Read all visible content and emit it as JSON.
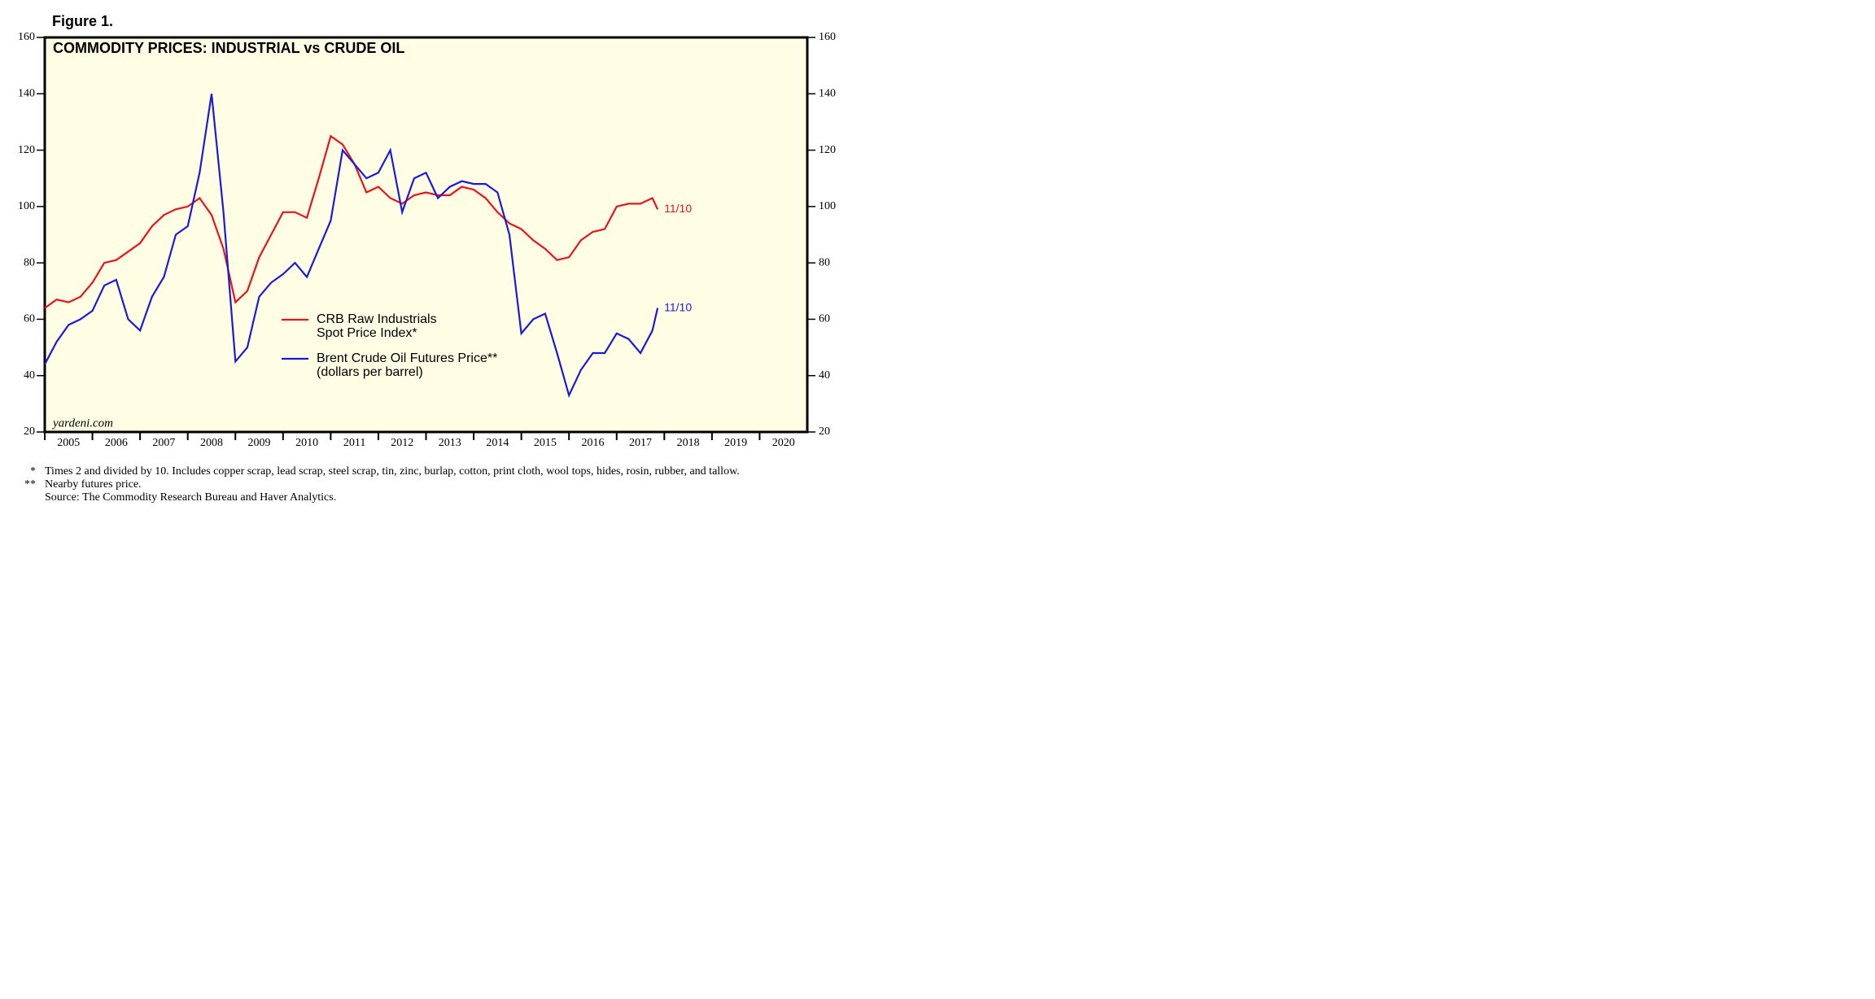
{
  "figure_label": "Figure 1.",
  "chart_data": {
    "type": "line",
    "title": "COMMODITY PRICES: INDUSTRIAL vs CRUDE OIL",
    "watermark": "yardeni.com",
    "x": [
      2005.0,
      2005.25,
      2005.5,
      2005.75,
      2006.0,
      2006.25,
      2006.5,
      2006.75,
      2007.0,
      2007.25,
      2007.5,
      2007.75,
      2008.0,
      2008.25,
      2008.5,
      2008.75,
      2009.0,
      2009.25,
      2009.5,
      2009.75,
      2010.0,
      2010.25,
      2010.5,
      2010.75,
      2011.0,
      2011.25,
      2011.5,
      2011.75,
      2012.0,
      2012.25,
      2012.5,
      2012.75,
      2013.0,
      2013.25,
      2013.5,
      2013.75,
      2014.0,
      2014.25,
      2014.5,
      2014.75,
      2015.0,
      2015.25,
      2015.5,
      2015.75,
      2016.0,
      2016.25,
      2016.5,
      2016.75,
      2017.0,
      2017.25,
      2017.5,
      2017.75,
      2017.86
    ],
    "series": [
      {
        "name": "CRB Raw Industrials\nSpot Price Index*",
        "color": "#e8141c",
        "end_label": "11/10",
        "values": [
          64,
          67,
          66,
          68,
          73,
          80,
          81,
          84,
          87,
          93,
          97,
          99,
          100,
          103,
          97,
          85,
          66,
          70,
          82,
          90,
          98,
          98,
          96,
          110,
          125,
          122,
          115,
          105,
          107,
          103,
          101,
          104,
          105,
          104,
          104,
          107,
          106,
          103,
          98,
          94,
          92,
          88,
          85,
          81,
          82,
          88,
          91,
          92,
          100,
          101,
          101,
          103,
          99
        ]
      },
      {
        "name": "Brent Crude Oil Futures Price**\n(dollars per barrel)",
        "color": "#1a1adc",
        "end_label": "11/10",
        "values": [
          44,
          52,
          58,
          60,
          63,
          72,
          74,
          60,
          56,
          68,
          75,
          90,
          93,
          112,
          140,
          98,
          45,
          50,
          68,
          73,
          76,
          80,
          75,
          85,
          95,
          120,
          115,
          110,
          112,
          120,
          98,
          110,
          112,
          103,
          107,
          109,
          108,
          108,
          105,
          90,
          55,
          60,
          62,
          48,
          33,
          42,
          48,
          48,
          55,
          53,
          48,
          56,
          64
        ]
      }
    ],
    "xlim": [
      2005,
      2021
    ],
    "xticks": [
      2005,
      2006,
      2007,
      2008,
      2009,
      2010,
      2011,
      2012,
      2013,
      2014,
      2015,
      2016,
      2017,
      2018,
      2019,
      2020
    ],
    "ylim": [
      20,
      160
    ],
    "yticks": [
      20,
      40,
      60,
      80,
      100,
      120,
      140,
      160
    ],
    "background": "#fffde4"
  },
  "footnotes": [
    {
      "mark": "*",
      "text": "Times 2 and divided by 10. Includes copper scrap, lead scrap, steel scrap, tin, zinc, burlap, cotton, print cloth, wool tops, hides, rosin, rubber, and tallow."
    },
    {
      "mark": "**",
      "text": "Nearby futures price."
    },
    {
      "mark": "",
      "text": "Source: The Commodity Research Bureau and Haver Analytics."
    }
  ]
}
